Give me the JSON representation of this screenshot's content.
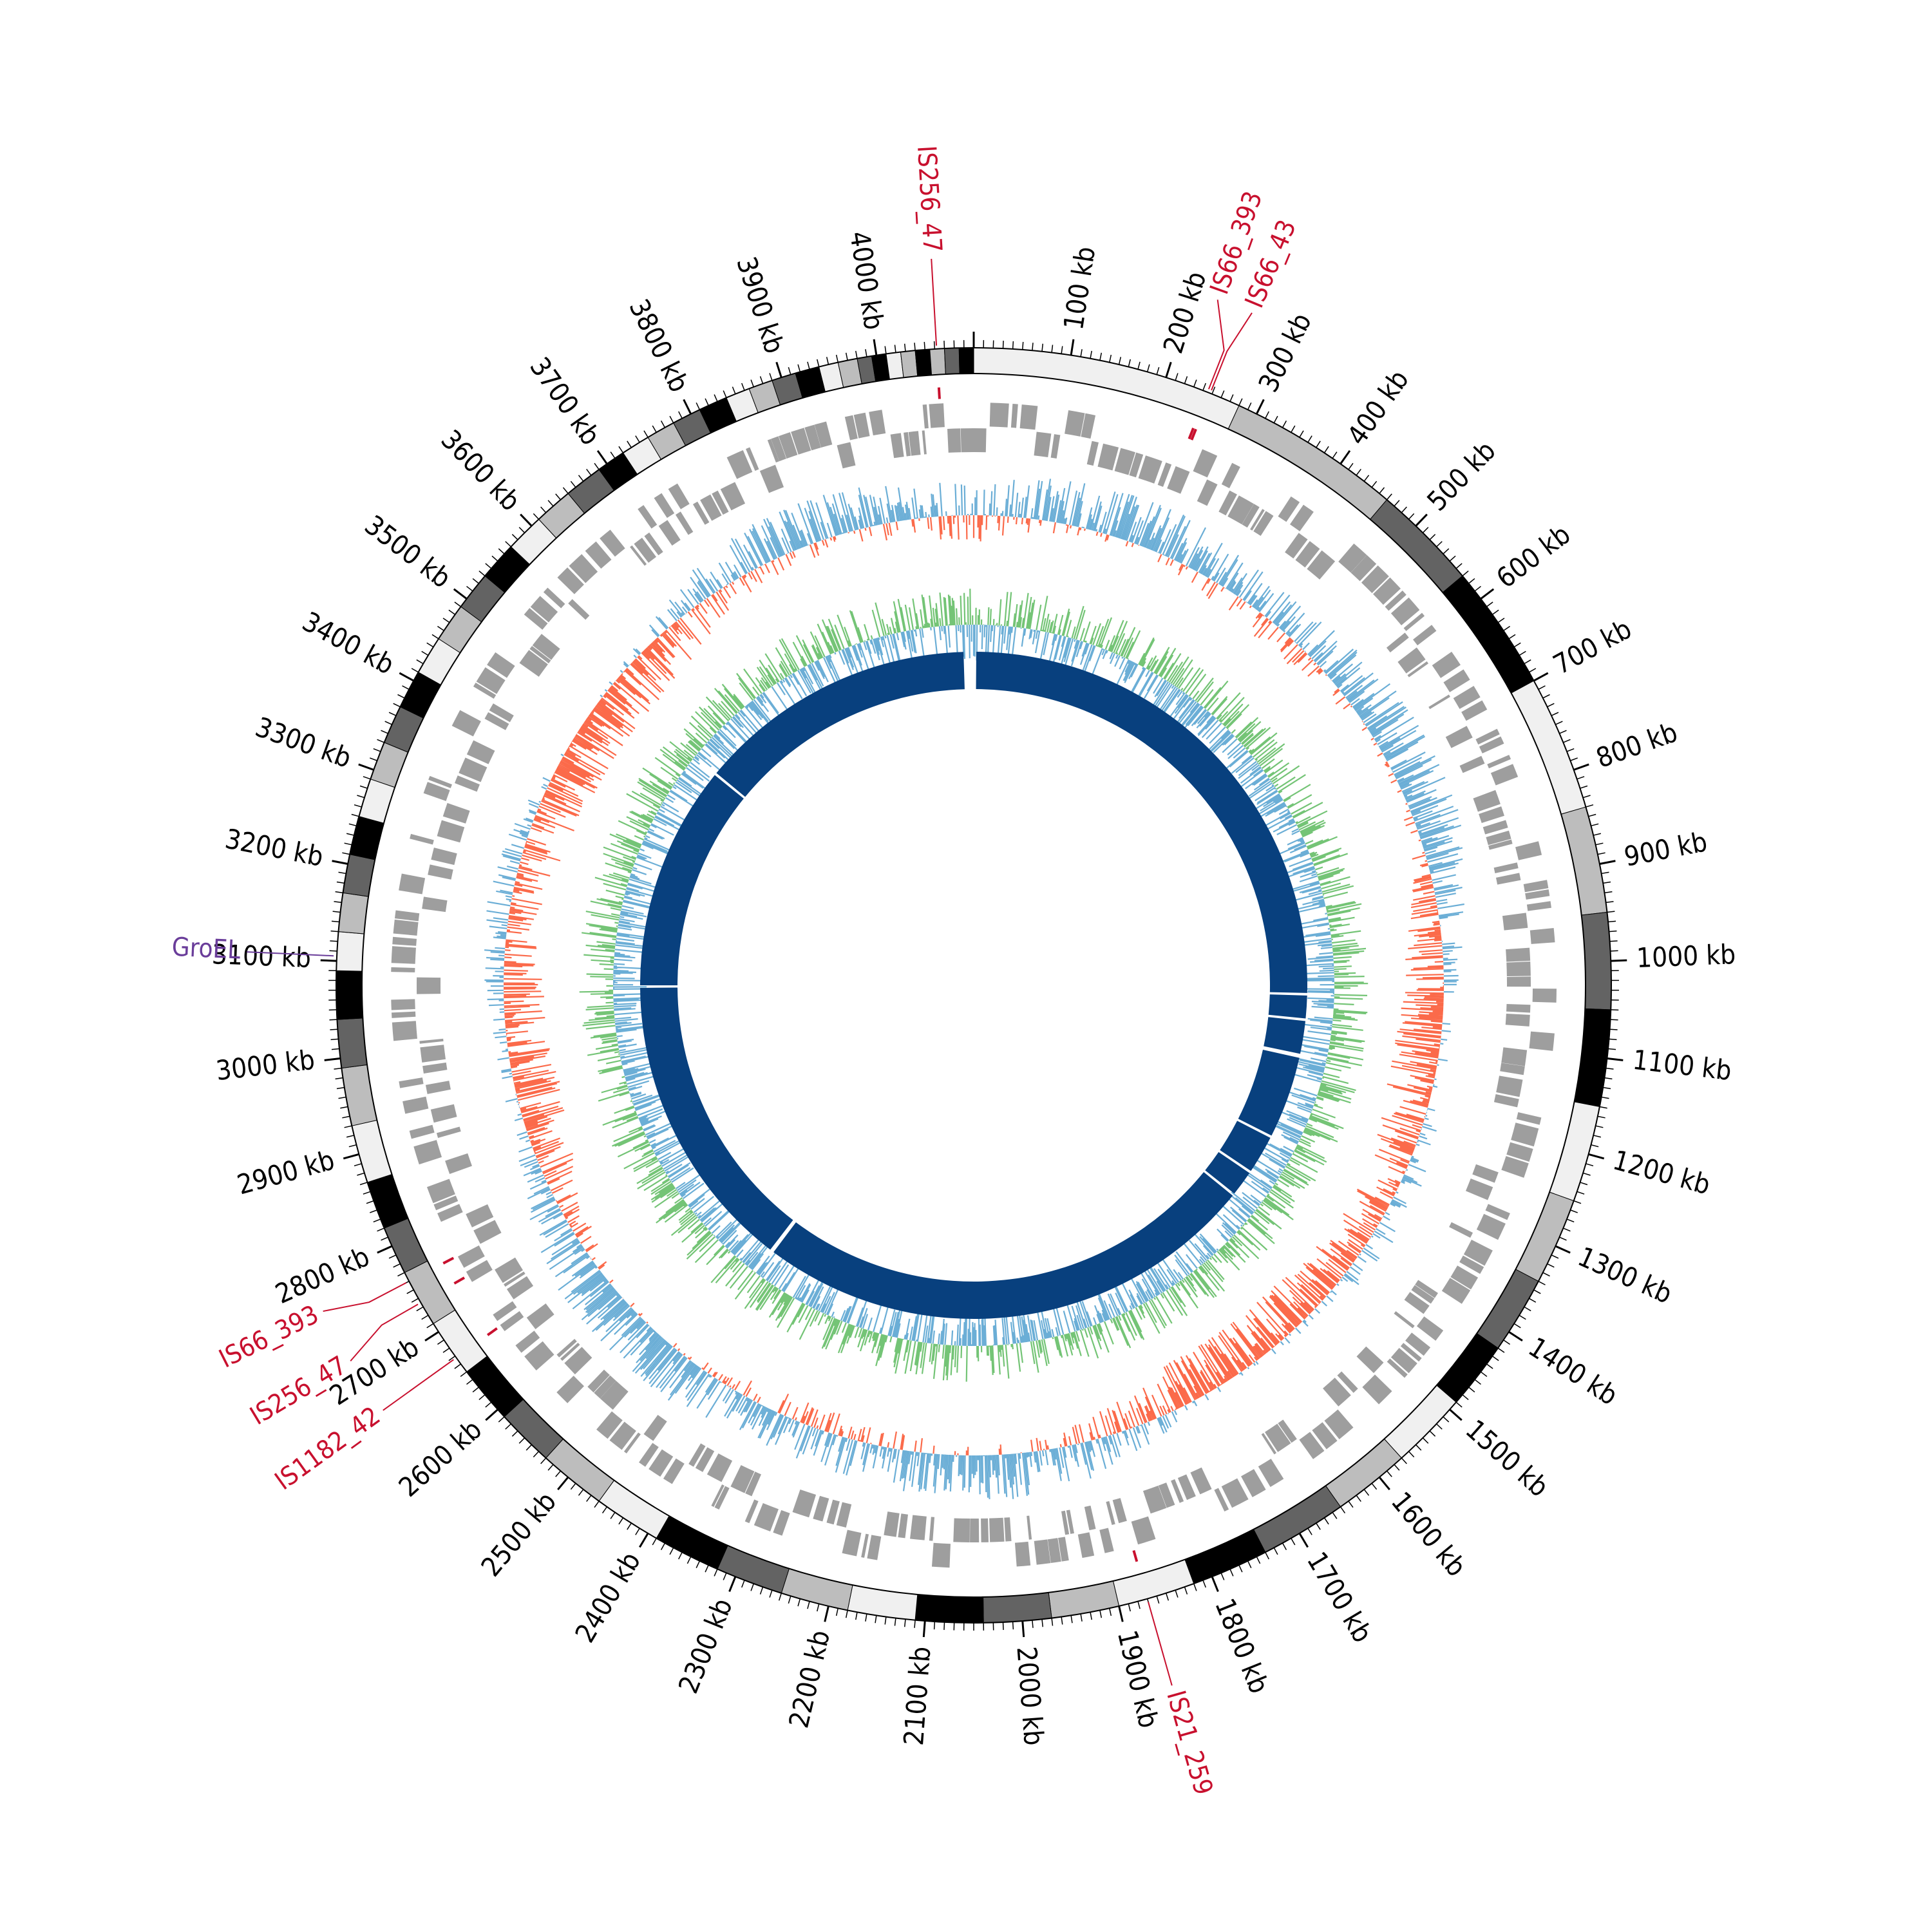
{
  "genome": {
    "length_kb": 4100,
    "tick_labels": [
      "100 kb",
      "200 kb",
      "300 kb",
      "400 kb",
      "500 kb",
      "600 kb",
      "700 kb",
      "800 kb",
      "900 kb",
      "1000 kb",
      "1100 kb",
      "1200 kb",
      "1300 kb",
      "1400 kb",
      "1500 kb",
      "1600 kb",
      "1700 kb",
      "1800 kb",
      "1900 kb",
      "2000 kb",
      "2100 kb",
      "2200 kb",
      "2300 kb",
      "2400 kb",
      "2500 kb",
      "2600 kb",
      "2700 kb",
      "2800 kb",
      "2900 kb",
      "3000 kb",
      "3100 kb",
      "3200 kb",
      "3300 kb",
      "3400 kb",
      "3500 kb",
      "3600 kb",
      "3700 kb",
      "3800 kb",
      "3900 kb",
      "4000 kb"
    ],
    "tick_positions_kb": [
      100,
      200,
      300,
      400,
      500,
      600,
      700,
      800,
      900,
      1000,
      1100,
      1200,
      1300,
      1400,
      1500,
      1600,
      1700,
      1800,
      1900,
      2000,
      2100,
      2200,
      2300,
      2400,
      2500,
      2600,
      2700,
      2800,
      2900,
      3000,
      3100,
      3200,
      3300,
      3400,
      3500,
      3600,
      3700,
      3800,
      3900,
      4000
    ]
  },
  "contig_band_colors": [
    "#f0f0f0",
    "#bdbdbd",
    "#636363",
    "#000000"
  ],
  "contig_bands": [
    {
      "start": 0,
      "end": 280,
      "color": "#f0f0f0"
    },
    {
      "start": 280,
      "end": 460,
      "color": "#bdbdbd"
    },
    {
      "start": 460,
      "end": 570,
      "color": "#636363"
    },
    {
      "start": 570,
      "end": 700,
      "color": "#000000"
    },
    {
      "start": 700,
      "end": 840,
      "color": "#f0f0f0"
    },
    {
      "start": 840,
      "end": 950,
      "color": "#bdbdbd"
    },
    {
      "start": 950,
      "end": 1050,
      "color": "#636363"
    },
    {
      "start": 1050,
      "end": 1150,
      "color": "#000000"
    },
    {
      "start": 1150,
      "end": 1250,
      "color": "#f0f0f0"
    },
    {
      "start": 1250,
      "end": 1340,
      "color": "#bdbdbd"
    },
    {
      "start": 1340,
      "end": 1420,
      "color": "#636363"
    },
    {
      "start": 1420,
      "end": 1490,
      "color": "#000000"
    },
    {
      "start": 1490,
      "end": 1570,
      "color": "#f0f0f0"
    },
    {
      "start": 1570,
      "end": 1650,
      "color": "#bdbdbd"
    },
    {
      "start": 1650,
      "end": 1740,
      "color": "#636363"
    },
    {
      "start": 1740,
      "end": 1820,
      "color": "#000000"
    },
    {
      "start": 1820,
      "end": 1900,
      "color": "#f0f0f0"
    },
    {
      "start": 1900,
      "end": 1970,
      "color": "#bdbdbd"
    },
    {
      "start": 1970,
      "end": 2040,
      "color": "#636363"
    },
    {
      "start": 2040,
      "end": 2110,
      "color": "#000000"
    },
    {
      "start": 2110,
      "end": 2180,
      "color": "#f0f0f0"
    },
    {
      "start": 2180,
      "end": 2250,
      "color": "#bdbdbd"
    },
    {
      "start": 2250,
      "end": 2320,
      "color": "#636363"
    },
    {
      "start": 2320,
      "end": 2390,
      "color": "#000000"
    },
    {
      "start": 2390,
      "end": 2460,
      "color": "#f0f0f0"
    },
    {
      "start": 2460,
      "end": 2530,
      "color": "#bdbdbd"
    },
    {
      "start": 2530,
      "end": 2590,
      "color": "#636363"
    },
    {
      "start": 2590,
      "end": 2650,
      "color": "#000000"
    },
    {
      "start": 2650,
      "end": 2710,
      "color": "#f0f0f0"
    },
    {
      "start": 2710,
      "end": 2770,
      "color": "#bdbdbd"
    },
    {
      "start": 2770,
      "end": 2820,
      "color": "#636363"
    },
    {
      "start": 2820,
      "end": 2870,
      "color": "#000000"
    },
    {
      "start": 2870,
      "end": 2930,
      "color": "#f0f0f0"
    },
    {
      "start": 2930,
      "end": 2990,
      "color": "#bdbdbd"
    },
    {
      "start": 2990,
      "end": 3040,
      "color": "#636363"
    },
    {
      "start": 3040,
      "end": 3090,
      "color": "#000000"
    },
    {
      "start": 3090,
      "end": 3130,
      "color": "#f0f0f0"
    },
    {
      "start": 3130,
      "end": 3170,
      "color": "#bdbdbd"
    },
    {
      "start": 3170,
      "end": 3210,
      "color": "#636363"
    },
    {
      "start": 3210,
      "end": 3250,
      "color": "#000000"
    },
    {
      "start": 3250,
      "end": 3290,
      "color": "#f0f0f0"
    },
    {
      "start": 3290,
      "end": 3330,
      "color": "#bdbdbd"
    },
    {
      "start": 3330,
      "end": 3370,
      "color": "#636363"
    },
    {
      "start": 3370,
      "end": 3410,
      "color": "#000000"
    },
    {
      "start": 3410,
      "end": 3450,
      "color": "#f0f0f0"
    },
    {
      "start": 3450,
      "end": 3490,
      "color": "#bdbdbd"
    },
    {
      "start": 3490,
      "end": 3530,
      "color": "#636363"
    },
    {
      "start": 3530,
      "end": 3570,
      "color": "#000000"
    },
    {
      "start": 3570,
      "end": 3610,
      "color": "#f0f0f0"
    },
    {
      "start": 3610,
      "end": 3650,
      "color": "#bdbdbd"
    },
    {
      "start": 3650,
      "end": 3690,
      "color": "#636363"
    },
    {
      "start": 3690,
      "end": 3720,
      "color": "#000000"
    },
    {
      "start": 3720,
      "end": 3750,
      "color": "#f0f0f0"
    },
    {
      "start": 3750,
      "end": 3780,
      "color": "#bdbdbd"
    },
    {
      "start": 3780,
      "end": 3810,
      "color": "#636363"
    },
    {
      "start": 3810,
      "end": 3840,
      "color": "#000000"
    },
    {
      "start": 3840,
      "end": 3865,
      "color": "#f0f0f0"
    },
    {
      "start": 3865,
      "end": 3890,
      "color": "#bdbdbd"
    },
    {
      "start": 3890,
      "end": 3915,
      "color": "#636363"
    },
    {
      "start": 3915,
      "end": 3940,
      "color": "#000000"
    },
    {
      "start": 3940,
      "end": 3960,
      "color": "#f0f0f0"
    },
    {
      "start": 3960,
      "end": 3980,
      "color": "#bdbdbd"
    },
    {
      "start": 3980,
      "end": 3995,
      "color": "#636363"
    },
    {
      "start": 3995,
      "end": 4010,
      "color": "#000000"
    },
    {
      "start": 4010,
      "end": 4025,
      "color": "#f0f0f0"
    },
    {
      "start": 4025,
      "end": 4040,
      "color": "#bdbdbd"
    },
    {
      "start": 4040,
      "end": 4055,
      "color": "#000000"
    },
    {
      "start": 4055,
      "end": 4070,
      "color": "#bdbdbd"
    },
    {
      "start": 4070,
      "end": 4085,
      "color": "#636363"
    },
    {
      "start": 4085,
      "end": 4100,
      "color": "#000000"
    }
  ],
  "feature_labels": [
    {
      "text": "IS256_47",
      "position_kb": 4062,
      "color": "#c8102e",
      "side": "outer"
    },
    {
      "text": "IS66_393",
      "position_kb": 245,
      "color": "#c8102e",
      "side": "outer"
    },
    {
      "text": "IS66_43",
      "position_kb": 248,
      "color": "#c8102e",
      "side": "outer"
    },
    {
      "text": "GroEL",
      "position_kb": 3105,
      "color": "#6a3d9a",
      "side": "outer"
    },
    {
      "text": "IS66_393",
      "position_kb": 2760,
      "color": "#c8102e",
      "side": "outer"
    },
    {
      "text": "IS256_47",
      "position_kb": 2735,
      "color": "#c8102e",
      "side": "outer"
    },
    {
      "text": "IS1182_42",
      "position_kb": 2668,
      "color": "#c8102e",
      "side": "outer"
    },
    {
      "text": "IS21_259",
      "position_kb": 1870,
      "color": "#c8102e",
      "side": "outer"
    }
  ],
  "track_colors": {
    "cds": "#9e9e9e",
    "gc_content_high": "#6baed6",
    "gc_content_low": "#fb6a4a",
    "gc_skew_positive": "#74c476",
    "gc_skew_negative": "#6baed6",
    "contigs": "#08407e",
    "is_element": "#c8102e",
    "tick": "#000000"
  },
  "assembly_contigs": [
    {
      "start": 5,
      "end": 1040
    },
    {
      "start": 1045,
      "end": 1090
    },
    {
      "start": 1095,
      "end": 1160
    },
    {
      "start": 1168,
      "end": 1330
    },
    {
      "start": 1335,
      "end": 1410
    },
    {
      "start": 1415,
      "end": 1465
    },
    {
      "start": 1470,
      "end": 2470
    },
    {
      "start": 2478,
      "end": 3070
    },
    {
      "start": 3075,
      "end": 3520
    },
    {
      "start": 3525,
      "end": 4080
    }
  ]
}
